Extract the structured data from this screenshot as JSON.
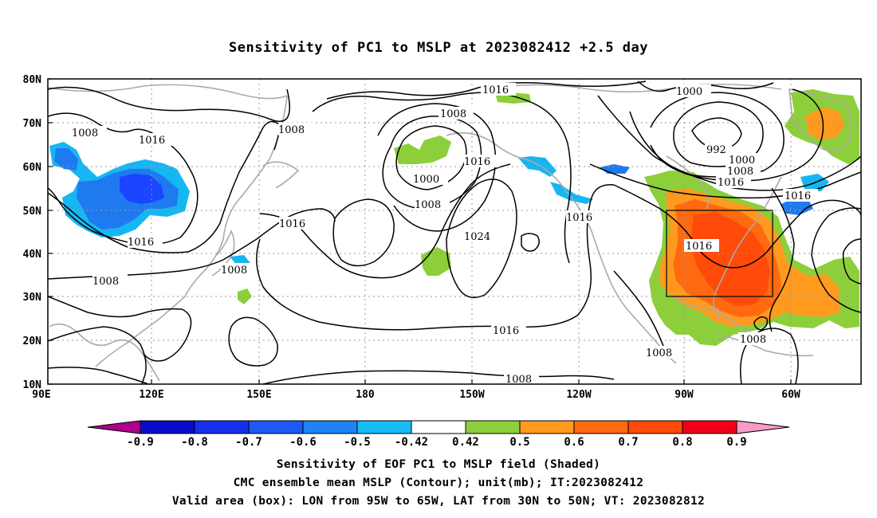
{
  "title": "Sensitivity of PC1 to MSLP at 2023082412 +2.5 day",
  "map": {
    "lon_ticks": [
      "90E",
      "120E",
      "150E",
      "180",
      "150W",
      "120W",
      "90W",
      "60W"
    ],
    "lat_ticks": [
      "80N",
      "70N",
      "60N",
      "50N",
      "40N",
      "30N",
      "20N",
      "10N"
    ],
    "contour_labels": [
      "1008",
      "1016",
      "1008",
      "1016",
      "1008",
      "1008",
      "1000",
      "1008",
      "1016",
      "1024",
      "1016",
      "1016",
      "1000",
      "992",
      "1000",
      "1008",
      "1016",
      "1016",
      "1016",
      "1008",
      "1008",
      "1016",
      "1008",
      "1016",
      "1008"
    ],
    "colors": {
      "green": "#8ccf3a",
      "orange": "#ff9a1f",
      "dark_orange": "#ff6a10",
      "red_orange": "#ff4a0a",
      "light_blue": "#16b6f2",
      "blue": "#1f7af0",
      "deep_blue": "#1c45ff",
      "coast": "#aaaaaa",
      "contour": "#000000"
    }
  },
  "colorbar": {
    "labels": [
      "-0.9",
      "-0.8",
      "-0.7",
      "-0.6",
      "-0.5",
      "-0.42",
      "0.42",
      "0.5",
      "0.6",
      "0.7",
      "0.8",
      "0.9"
    ],
    "colors": [
      "#b0008c",
      "#0a0acb",
      "#1430ee",
      "#1d5af5",
      "#1f82f5",
      "#16bdf5",
      "#ffffff",
      "#8ccf3a",
      "#ff9a1f",
      "#ff6a10",
      "#ff4a0a",
      "#f00016",
      "#f79ac8"
    ]
  },
  "captions": [
    "Sensitivity of EOF PC1 to MSLP field (Shaded)",
    "CMC ensemble mean MSLP (Contour); unit(mb); IT:2023082412",
    "Valid area (box): LON from 95W to 65W, LAT from 30N to 50N; VT: 2023082812"
  ]
}
